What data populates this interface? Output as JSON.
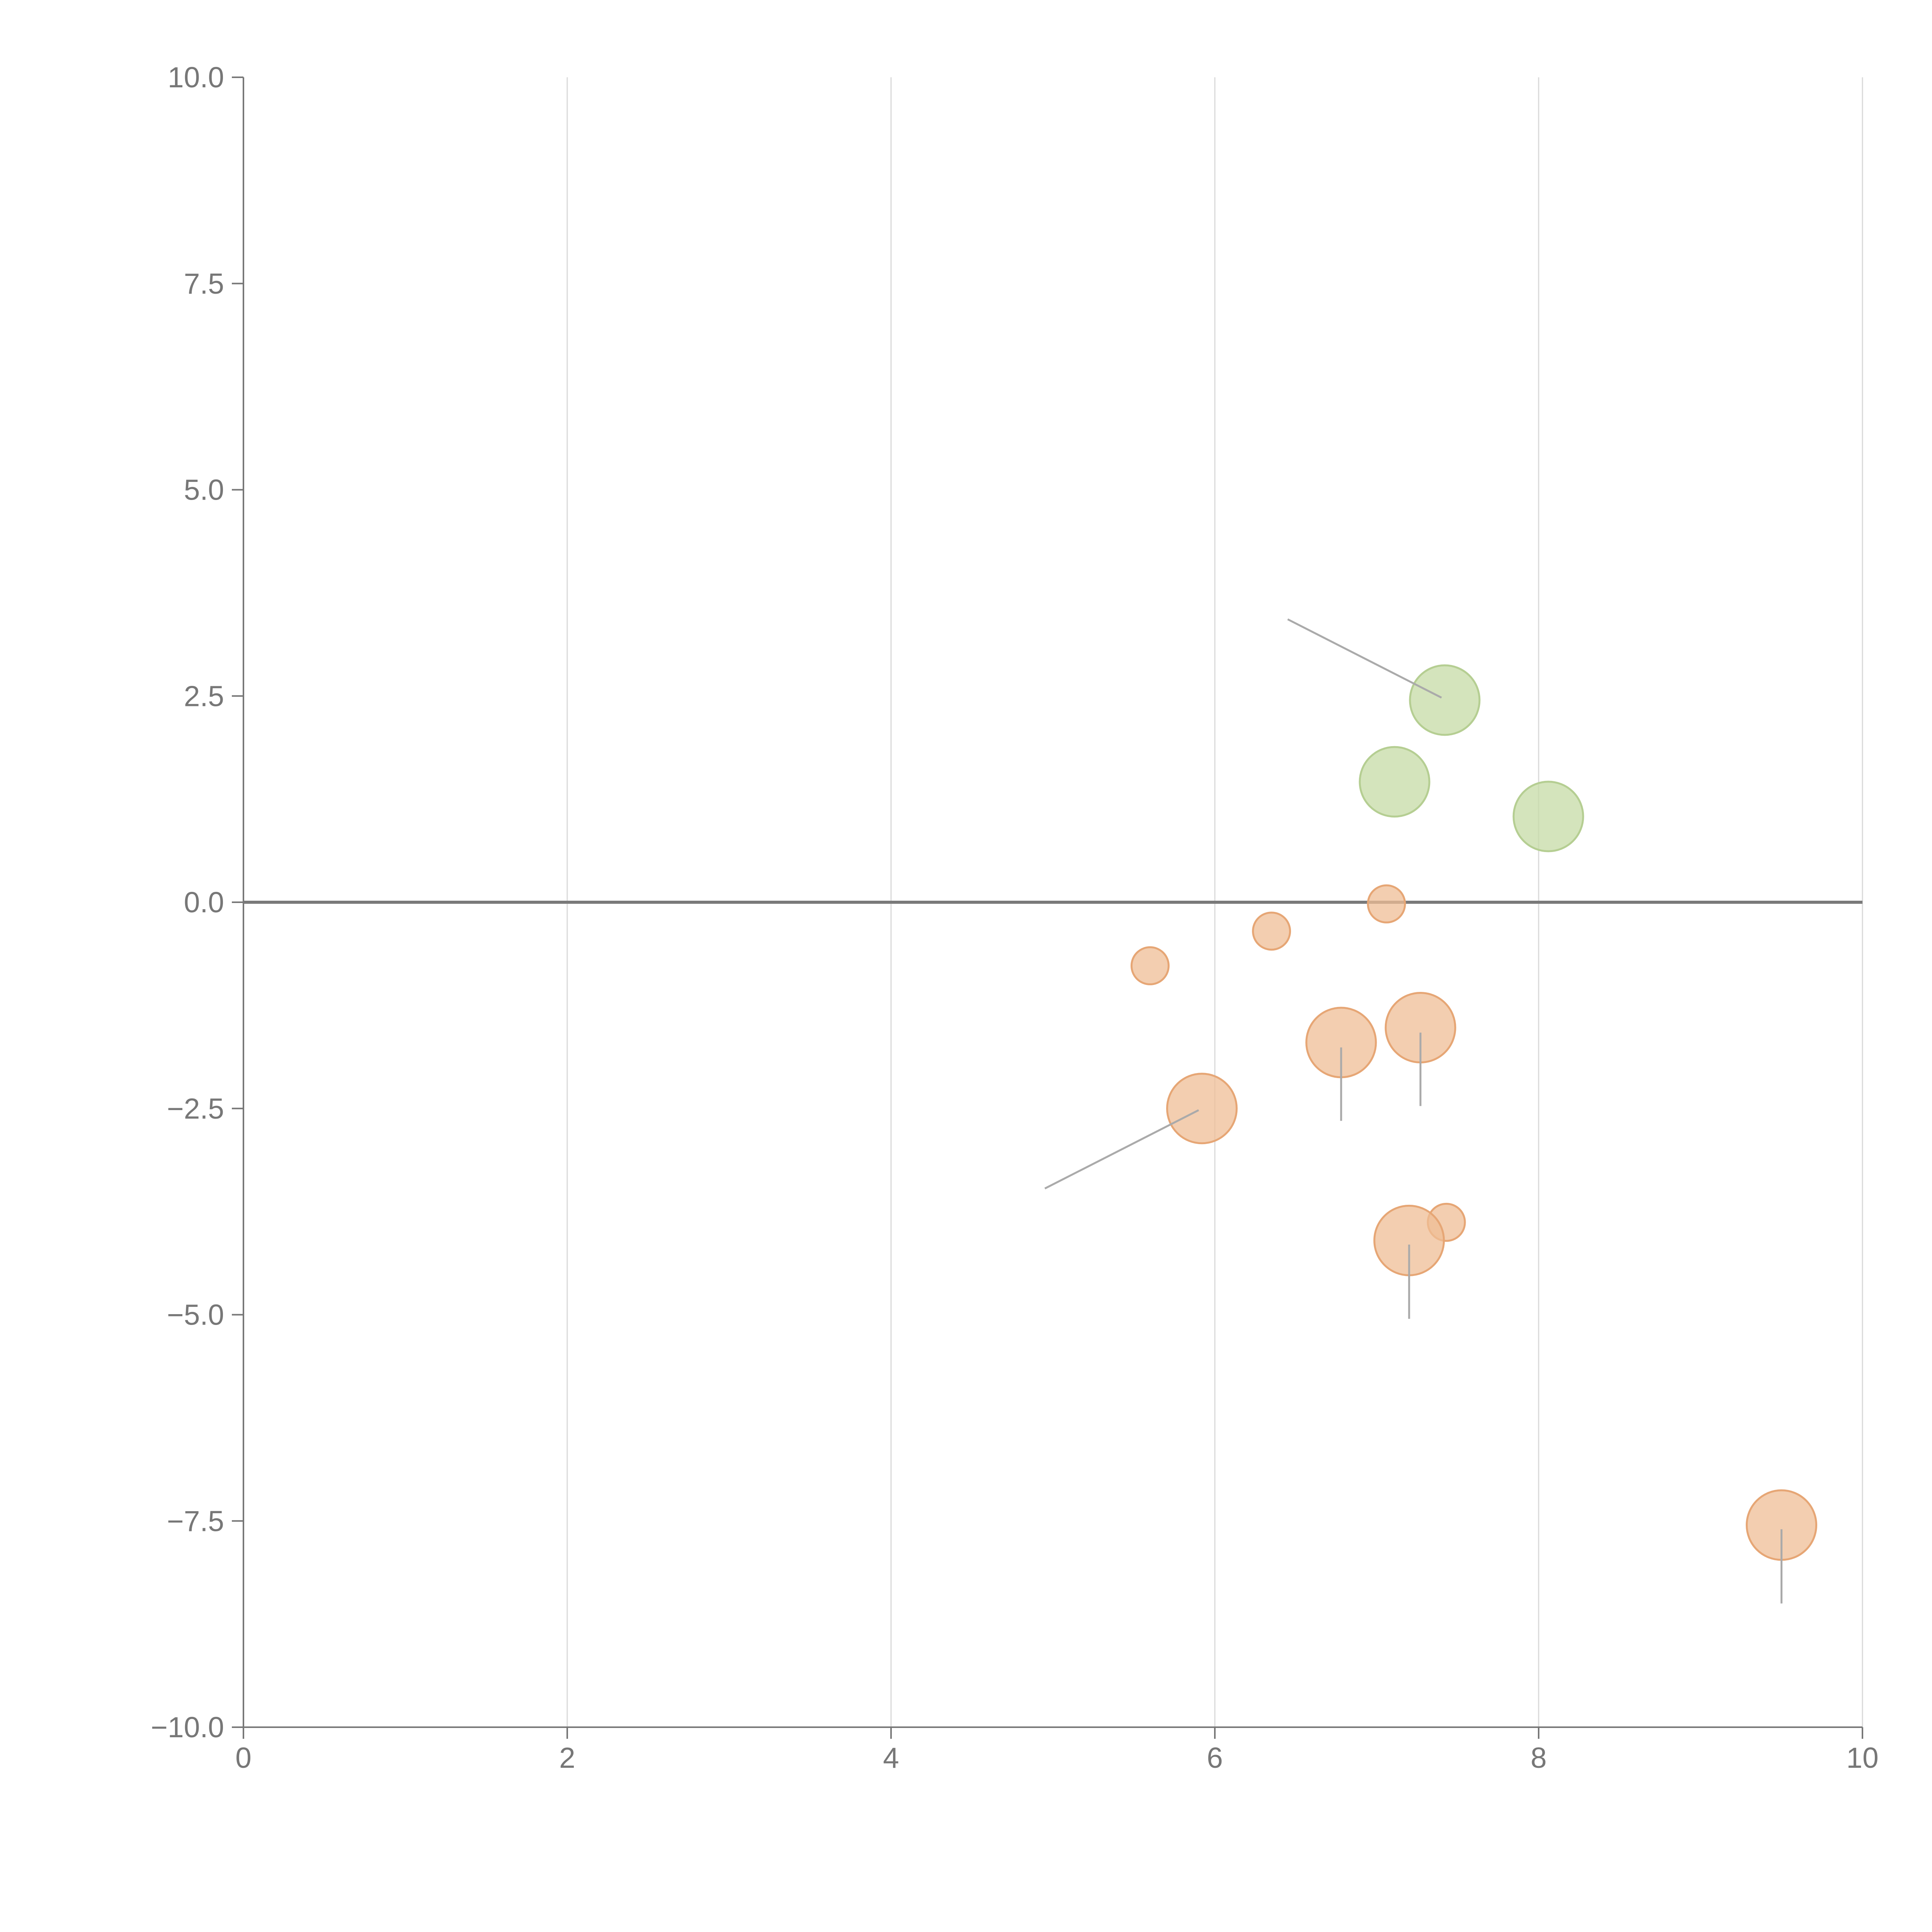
{
  "chart_data": {
    "type": "scatter",
    "title": "",
    "xlabel": "",
    "ylabel": "",
    "xlim": [
      0,
      10
    ],
    "ylim": [
      -10,
      10
    ],
    "x_ticks": [
      0,
      2,
      4,
      6,
      8,
      10
    ],
    "x_tick_labels": [
      "0",
      "2",
      "4",
      "6",
      "8",
      "10"
    ],
    "y_ticks": [
      10,
      7.5,
      5,
      2.5,
      0,
      -2.5,
      -5,
      -7.5,
      -10
    ],
    "y_tick_labels": [
      "10.0",
      "7.5",
      "5.0",
      "2.5",
      "0.0",
      "−2.5",
      "−5.0",
      "−7.5",
      "−10.0"
    ],
    "grid": "vertical",
    "reference_line_y": 0,
    "colors": {
      "positive_fill": "#c5dba6",
      "positive_stroke": "#b5ce92",
      "negative_fill": "#efbd96",
      "negative_stroke": "#e6a675",
      "axis": "#777777",
      "grid": "#d9d9d9",
      "zero_line": "#7a7a7a",
      "leader": "#aaaaaa"
    },
    "series": [
      {
        "name": "positive",
        "points": [
          {
            "x": 7.42,
            "y": 2.45,
            "size": 1.0
          },
          {
            "x": 7.11,
            "y": 1.46,
            "size": 1.0
          },
          {
            "x": 8.06,
            "y": 1.04,
            "size": 1.0
          }
        ]
      },
      {
        "name": "negative",
        "points": [
          {
            "x": 7.06,
            "y": -0.02,
            "size": 0.5
          },
          {
            "x": 6.35,
            "y": -0.35,
            "size": 0.5
          },
          {
            "x": 5.6,
            "y": -0.77,
            "size": 0.5
          },
          {
            "x": 7.27,
            "y": -1.52,
            "size": 1.0
          },
          {
            "x": 6.78,
            "y": -1.7,
            "size": 1.0
          },
          {
            "x": 5.92,
            "y": -2.5,
            "size": 1.0
          },
          {
            "x": 7.43,
            "y": -3.88,
            "size": 0.5
          },
          {
            "x": 7.2,
            "y": -4.1,
            "size": 1.0
          },
          {
            "x": 9.5,
            "y": -7.55,
            "size": 1.0
          }
        ]
      }
    ],
    "leader_lines": [
      {
        "x1": 7.4,
        "y1": 2.48,
        "x2": 6.45,
        "y2": 3.43
      },
      {
        "x1": 5.9,
        "y1": -2.52,
        "x2": 4.95,
        "y2": -3.47
      },
      {
        "x1": 6.78,
        "y1": -1.76,
        "x2": 6.78,
        "y2": -2.65
      },
      {
        "x1": 7.27,
        "y1": -1.58,
        "x2": 7.27,
        "y2": -2.47
      },
      {
        "x1": 7.2,
        "y1": -4.15,
        "x2": 7.2,
        "y2": -5.05
      },
      {
        "x1": 9.5,
        "y1": -7.6,
        "x2": 9.5,
        "y2": -8.5
      }
    ]
  }
}
